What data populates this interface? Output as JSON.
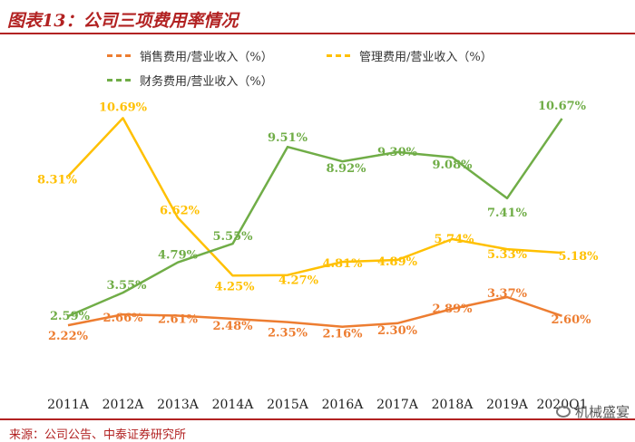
{
  "header": {
    "title": "图表13：公司三项费用率情况"
  },
  "footer": {
    "source": "来源：公司公告、中泰证券研究所"
  },
  "watermark": {
    "icon": "wechat-icon",
    "text": "机械盛宴"
  },
  "colors": {
    "accent": "#b22222",
    "selling": "#ed7d31",
    "admin": "#ffc000",
    "finance": "#70ad47"
  },
  "chart_data": {
    "type": "line",
    "title": "公司三项费用率情况",
    "x_unit_note": "",
    "categories": [
      "2011A",
      "2012A",
      "2013A",
      "2014A",
      "2015A",
      "2016A",
      "2017A",
      "2018A",
      "2019A",
      "2020Q1"
    ],
    "series": [
      {
        "name": "销售费用/营业收入（%）",
        "color": "#ed7d31",
        "values": [
          2.22,
          2.66,
          2.61,
          2.48,
          2.35,
          2.16,
          2.3,
          2.89,
          3.37,
          2.6
        ],
        "labels": [
          "2.22%",
          "2.66%",
          "2.61%",
          "2.48%",
          "2.35%",
          "2.16%",
          "2.30%",
          "2.89%",
          "3.37%",
          "2.60%"
        ]
      },
      {
        "name": "管理费用/营业收入（%）",
        "color": "#ffc000",
        "values": [
          8.31,
          10.69,
          6.62,
          4.25,
          4.27,
          4.81,
          4.89,
          5.74,
          5.33,
          5.18
        ],
        "labels": [
          "8.31%",
          "10.69%",
          "6.62%",
          "4.25%",
          "4.27%",
          "4.81%",
          "4.89%",
          "5.74%",
          "5.33%",
          "5.18%"
        ]
      },
      {
        "name": "财务费用/营业收入（%）",
        "color": "#70ad47",
        "values": [
          2.59,
          3.55,
          4.79,
          5.55,
          9.51,
          8.92,
          9.3,
          9.08,
          7.41,
          10.67
        ],
        "labels": [
          "2.59%",
          "3.55%",
          "4.79%",
          "5.55%",
          "9.51%",
          "8.92%",
          "9.30%",
          "9.08%",
          "7.41%",
          "10.67%"
        ]
      }
    ],
    "ylim": [
      0,
      12
    ],
    "grid": false,
    "legend_position": "top"
  }
}
